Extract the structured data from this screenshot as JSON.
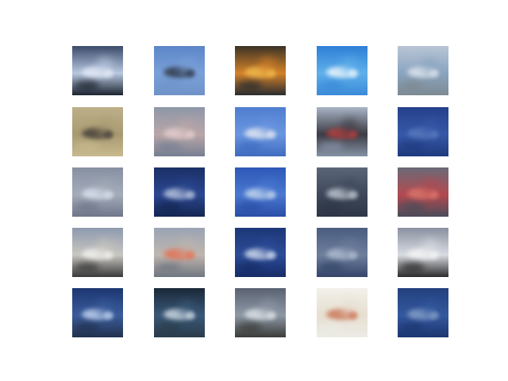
{
  "figure": {
    "description_free": true,
    "rows": 5,
    "columns": 5,
    "tiles": [
      {
        "sky": "#3a4a6a",
        "mid": "#b8c8e0",
        "ground": "#1c2430",
        "accent": "#e8eef8"
      },
      {
        "sky": "#5b86c8",
        "mid": "#7aa0d8",
        "ground": "#6f93c9",
        "accent": "#2a2f3a"
      },
      {
        "sky": "#3b3326",
        "mid": "#d4822a",
        "ground": "#2a2d30",
        "accent": "#f0c050"
      },
      {
        "sky": "#2e7fd6",
        "mid": "#5fb0ea",
        "ground": "#3a8ad8",
        "accent": "#ffffff"
      },
      {
        "sky": "#b9c6d6",
        "mid": "#8aa4c0",
        "ground": "#7d8a92",
        "accent": "#e6ebf0"
      },
      {
        "sky": "#bdb08a",
        "mid": "#a89a70",
        "ground": "#c8b98f",
        "accent": "#3a3634"
      },
      {
        "sky": "#8e97a8",
        "mid": "#b9a6a8",
        "ground": "#767f92",
        "accent": "#e8d0d0"
      },
      {
        "sky": "#4f7ed0",
        "mid": "#6a96e0",
        "ground": "#3f6cc0",
        "accent": "#f2f2f2"
      },
      {
        "sky": "#a8b4c6",
        "mid": "#3c3c44",
        "ground": "#8592a6",
        "accent": "#c04040"
      },
      {
        "sky": "#24408a",
        "mid": "#3658a8",
        "ground": "#1f3a7e",
        "accent": "#5d7cc0"
      },
      {
        "sky": "#8790a2",
        "mid": "#a4acba",
        "ground": "#6f768a",
        "accent": "#dfe6f2"
      },
      {
        "sky": "#1a2f66",
        "mid": "#2b4790",
        "ground": "#142652",
        "accent": "#c8d2e6"
      },
      {
        "sky": "#2e58b8",
        "mid": "#4a78d0",
        "ground": "#2a4ea6",
        "accent": "#cfe0f0"
      },
      {
        "sky": "#5a6678",
        "mid": "#3e485a",
        "ground": "#2e3646",
        "accent": "#cdd4de"
      },
      {
        "sky": "#6a6a78",
        "mid": "#b24a50",
        "ground": "#4a4c5a",
        "accent": "#e07a70"
      },
      {
        "sky": "#8e9aae",
        "mid": "#c8c6c0",
        "ground": "#3a3a3a",
        "accent": "#f4f4f2"
      },
      {
        "sky": "#9aa4b4",
        "mid": "#bfb6ae",
        "ground": "#707680",
        "accent": "#e86a4a"
      },
      {
        "sky": "#1d3778",
        "mid": "#2c4c98",
        "ground": "#162c66",
        "accent": "#e4ecf6"
      },
      {
        "sky": "#4a5c80",
        "mid": "#6e7e9c",
        "ground": "#34466a",
        "accent": "#b6c2d6"
      },
      {
        "sky": "#8a90a0",
        "mid": "#d8dce2",
        "ground": "#2c2a2c",
        "accent": "#f6f6f6"
      },
      {
        "sky": "#1c3670",
        "mid": "#3a5c9c",
        "ground": "#22324e",
        "accent": "#cfe0f6"
      },
      {
        "sky": "#1a2838",
        "mid": "#3a5878",
        "ground": "#2a3c4a",
        "accent": "#dfe8ee"
      },
      {
        "sky": "#5a6272",
        "mid": "#8e98a6",
        "ground": "#3a3c38",
        "accent": "#e6eaee"
      },
      {
        "sky": "#f2f0ea",
        "mid": "#e6dfd0",
        "ground": "#ecebe6",
        "accent": "#c86a4a"
      },
      {
        "sky": "#22407e",
        "mid": "#34589e",
        "ground": "#1c3670",
        "accent": "#8ea6cc"
      }
    ]
  }
}
